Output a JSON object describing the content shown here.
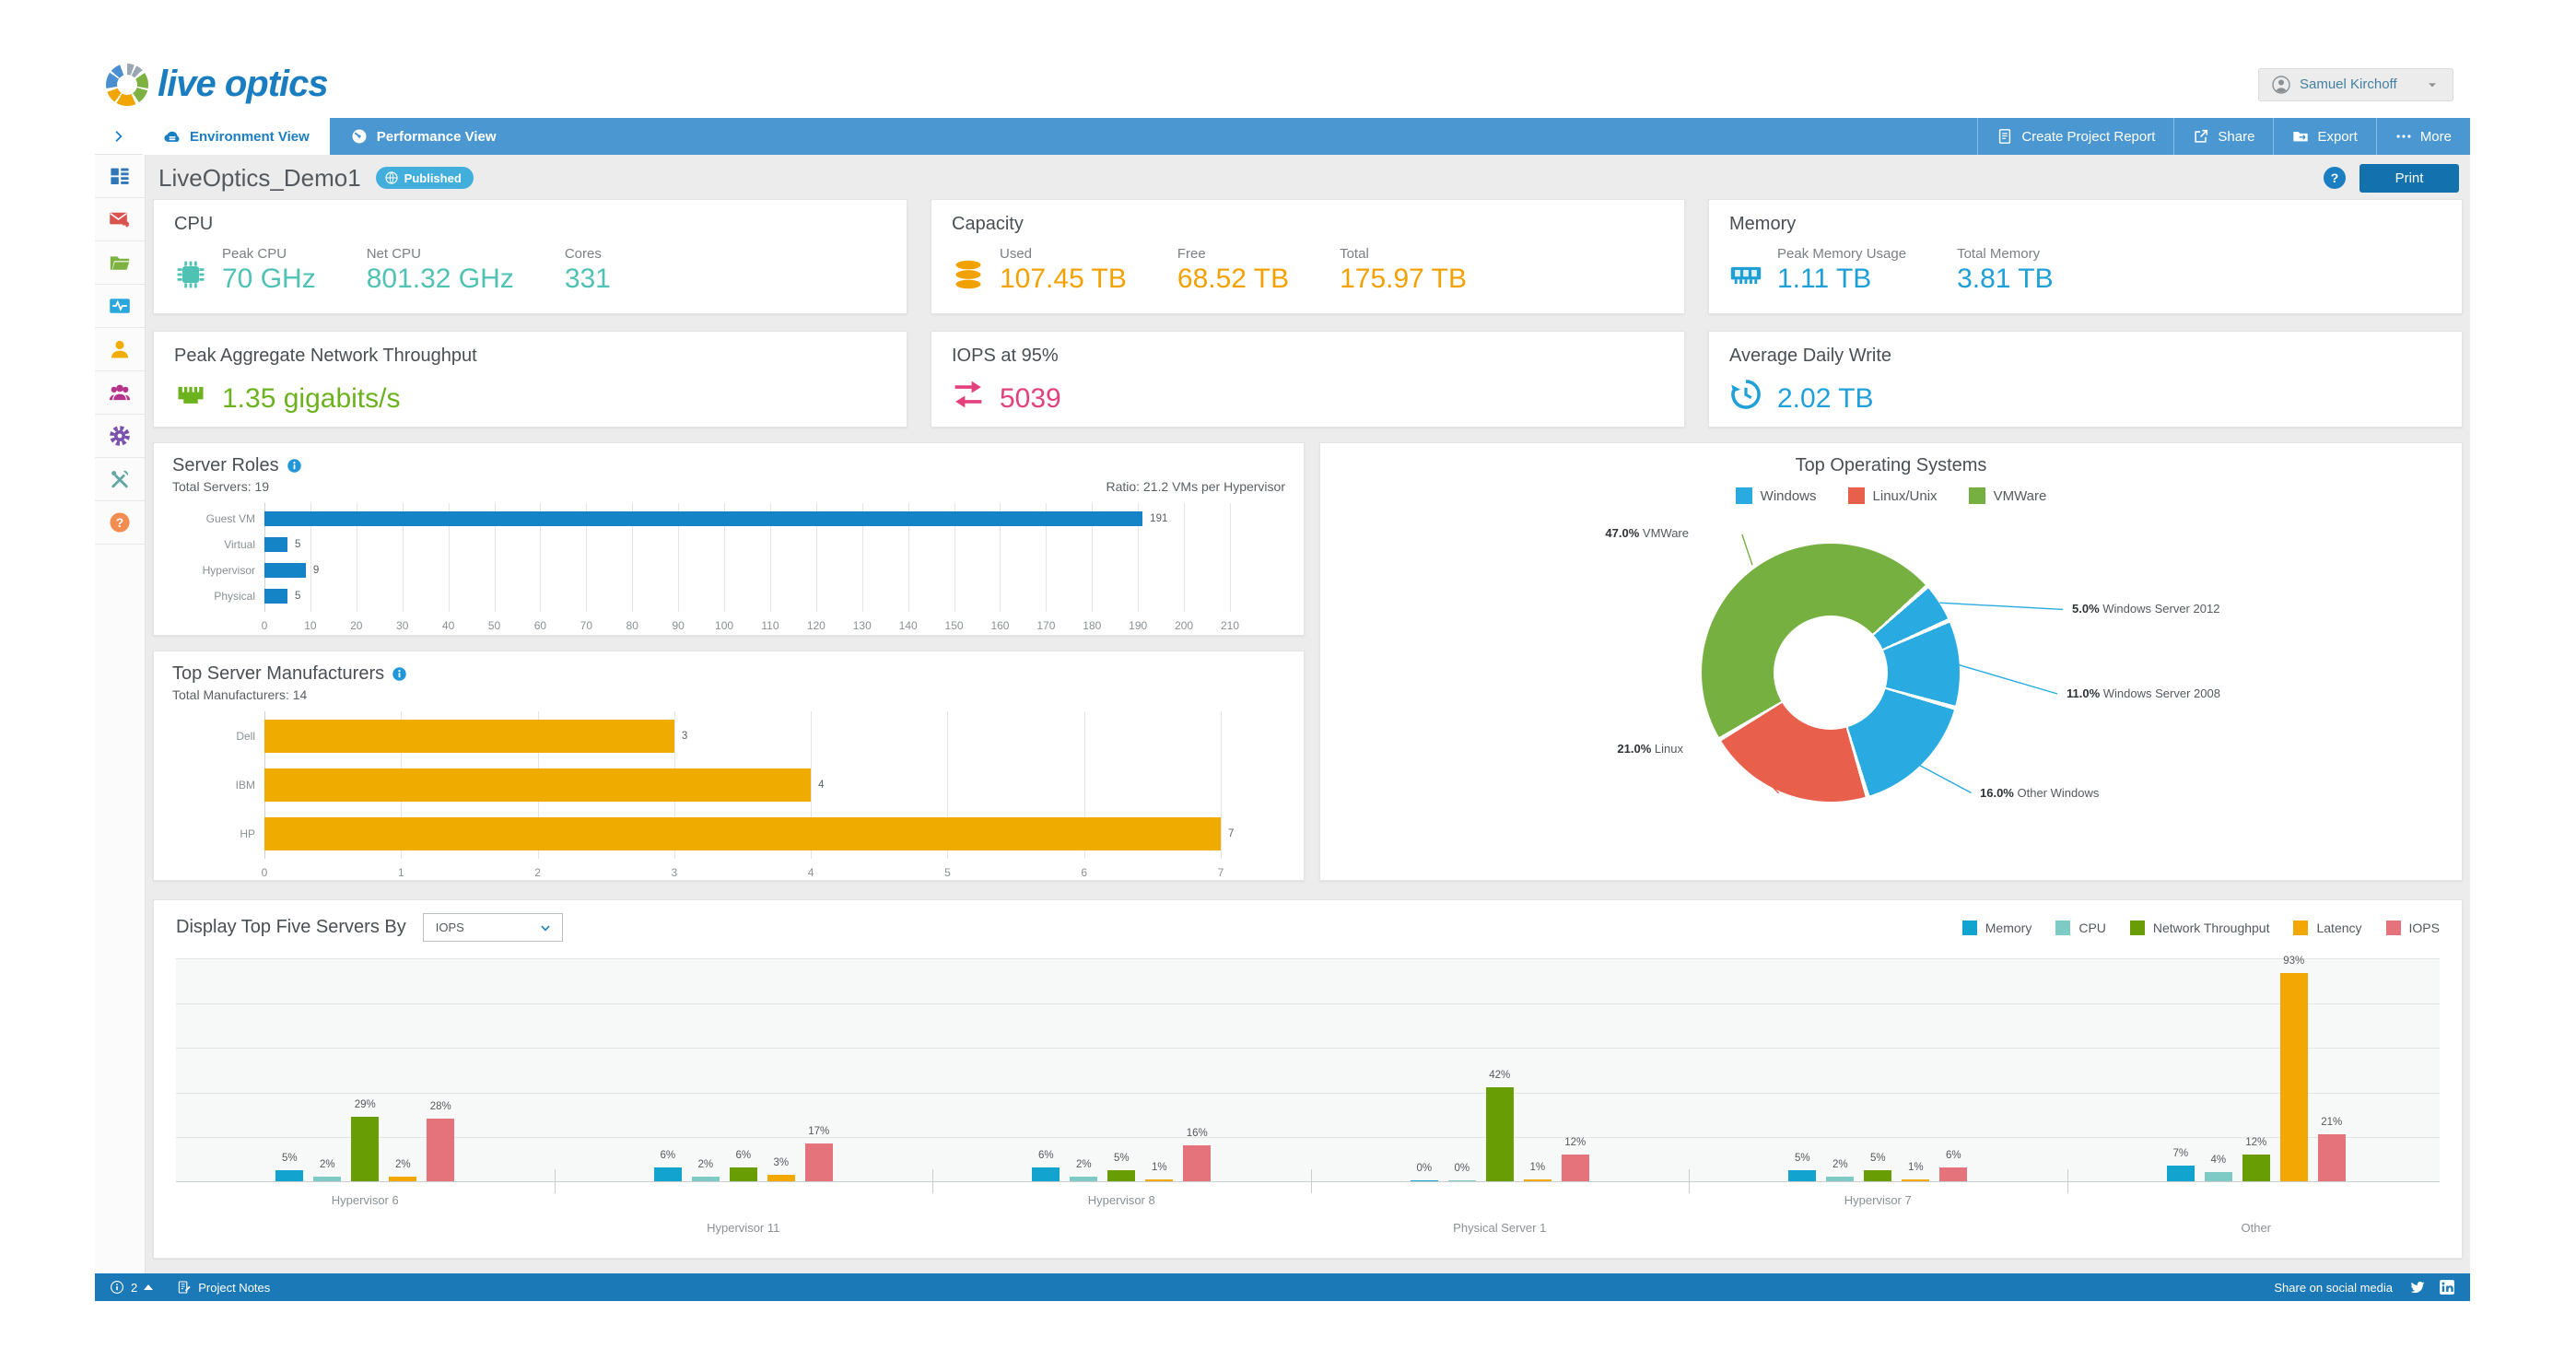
{
  "header": {
    "logo_text": "live optics",
    "user_name": "Samuel Kirchoff"
  },
  "tabbar": {
    "tabs": [
      {
        "label": "Environment View",
        "icon": "cloud-icon",
        "active": true
      },
      {
        "label": "Performance View",
        "icon": "gauge-icon",
        "active": false
      }
    ],
    "actions": [
      {
        "label": "Create Project Report",
        "icon": "report-icon"
      },
      {
        "label": "Share",
        "icon": "share-icon"
      },
      {
        "label": "Export",
        "icon": "export-icon"
      },
      {
        "label": "More",
        "icon": "more-icon"
      }
    ]
  },
  "sidebar": {
    "items": [
      {
        "name": "dashboard",
        "icon": "dashboard-icon",
        "color": "#2e77b8"
      },
      {
        "name": "invitations",
        "icon": "mail-icon",
        "color": "#d9534f"
      },
      {
        "name": "projects",
        "icon": "folder-icon",
        "color": "#7db242"
      },
      {
        "name": "activity",
        "icon": "monitor-icon",
        "color": "#2aa8de"
      },
      {
        "name": "profile",
        "icon": "user-icon",
        "color": "#f0ad00"
      },
      {
        "name": "team",
        "icon": "users-icon",
        "color": "#b5338a"
      },
      {
        "name": "settings",
        "icon": "gear-icon",
        "color": "#7b52ab"
      },
      {
        "name": "tools",
        "icon": "tools-icon",
        "color": "#63a8a4"
      },
      {
        "name": "help",
        "icon": "question-icon",
        "color": "#f28c50"
      }
    ]
  },
  "page": {
    "title": "LiveOptics_Demo1",
    "status_badge": "Published",
    "print_label": "Print"
  },
  "stat_cards": [
    {
      "title": "CPU",
      "icon": "cpu-icon",
      "color": "#4fc2b4",
      "metrics": [
        {
          "label": "Peak CPU",
          "value": "70 GHz"
        },
        {
          "label": "Net CPU",
          "value": "801.32 GHz"
        },
        {
          "label": "Cores",
          "value": "331"
        }
      ]
    },
    {
      "title": "Capacity",
      "icon": "database-icon",
      "color": "#f2a200",
      "metrics": [
        {
          "label": "Used",
          "value": "107.45 TB"
        },
        {
          "label": "Free",
          "value": "68.52 TB"
        },
        {
          "label": "Total",
          "value": "175.97 TB"
        }
      ]
    },
    {
      "title": "Memory",
      "icon": "memory-icon",
      "color": "#1e9fd6",
      "metrics": [
        {
          "label": "Peak Memory Usage",
          "value": "1.11 TB"
        },
        {
          "label": "Total Memory",
          "value": "3.81 TB"
        }
      ]
    },
    {
      "title": "Peak Aggregate Network Throughput",
      "icon": "network-icon",
      "color": "#6cb21e",
      "metrics": [
        {
          "label": "",
          "value": "1.35 gigabits/s"
        }
      ]
    },
    {
      "title": "IOPS at 95%",
      "icon": "iops-icon",
      "color": "#e2417d",
      "metrics": [
        {
          "label": "",
          "value": "5039"
        }
      ]
    },
    {
      "title": "Average Daily Write",
      "icon": "write-icon",
      "color": "#20a0d8",
      "metrics": [
        {
          "label": "",
          "value": "2.02 TB"
        }
      ]
    }
  ],
  "chart_data": [
    {
      "id": "server_roles",
      "type": "bar",
      "orientation": "horizontal",
      "title": "Server Roles",
      "subtitle": "Total Servers: 19",
      "note_right": "Ratio: 21.2 VMs per Hypervisor",
      "categories": [
        "Guest VM",
        "Virtual",
        "Hypervisor",
        "Physical"
      ],
      "values": [
        191,
        5,
        9,
        5
      ],
      "color": "#1484c6",
      "xlim": [
        0,
        210
      ],
      "xtick_step": 10,
      "grid": true
    },
    {
      "id": "top_manufacturers",
      "type": "bar",
      "orientation": "horizontal",
      "title": "Top Server Manufacturers",
      "subtitle": "Total Manufacturers: 14",
      "categories": [
        "Dell",
        "IBM",
        "HP"
      ],
      "values": [
        3,
        4,
        7
      ],
      "color": "#f0ab00",
      "xlim": [
        0,
        7
      ],
      "xtick_step": 1,
      "grid": true
    },
    {
      "id": "top_os",
      "type": "pie",
      "donut": true,
      "title": "Top Operating Systems",
      "legend": [
        {
          "label": "Windows",
          "color": "#29abe2"
        },
        {
          "label": "Linux/Unix",
          "color": "#e8604c"
        },
        {
          "label": "VMWare",
          "color": "#76b041"
        }
      ],
      "slices": [
        {
          "label": "VMWare",
          "pct": 47.0,
          "color": "#76b041"
        },
        {
          "label": "Windows Server 2012",
          "pct": 5.0,
          "color": "#29abe2"
        },
        {
          "label": "Windows Server 2008",
          "pct": 11.0,
          "color": "#29abe2"
        },
        {
          "label": "Other Windows",
          "pct": 16.0,
          "color": "#29abe2"
        },
        {
          "label": "Linux",
          "pct": 21.0,
          "color": "#e8604c"
        }
      ],
      "start_angle_deg": 240
    },
    {
      "id": "top_five",
      "type": "bar",
      "orientation": "vertical",
      "title": "Display Top Five Servers By",
      "selector_value": "IOPS",
      "categories": [
        "Hypervisor 6",
        "Hypervisor 11",
        "Hypervisor 8",
        "Physical Server 1",
        "Hypervisor 7",
        "Other"
      ],
      "series": [
        {
          "name": "Memory",
          "color": "#12a3cf",
          "values": [
            5,
            6,
            6,
            0,
            5,
            7
          ]
        },
        {
          "name": "CPU",
          "color": "#7ecac4",
          "values": [
            2,
            2,
            2,
            0,
            2,
            4
          ]
        },
        {
          "name": "Network Throughput",
          "color": "#689d03",
          "values": [
            29,
            6,
            5,
            42,
            5,
            12
          ]
        },
        {
          "name": "Latency",
          "color": "#f2a702",
          "values": [
            2,
            3,
            1,
            1,
            1,
            93
          ]
        },
        {
          "name": "IOPS",
          "color": "#e4737c",
          "values": [
            28,
            17,
            16,
            12,
            6,
            21
          ]
        }
      ],
      "unit": "%",
      "ylim": [
        0,
        100
      ],
      "gridline_step": 20,
      "legend_position": "top-right"
    }
  ],
  "footer": {
    "notification_count": "2",
    "notes_label": "Project Notes",
    "share_label": "Share on social media"
  },
  "colors": {
    "accent": "#1b7ec2",
    "tab_bar": "#4a97d2",
    "footer_bar": "#1b79b8",
    "page_bg": "#ebeceb"
  }
}
